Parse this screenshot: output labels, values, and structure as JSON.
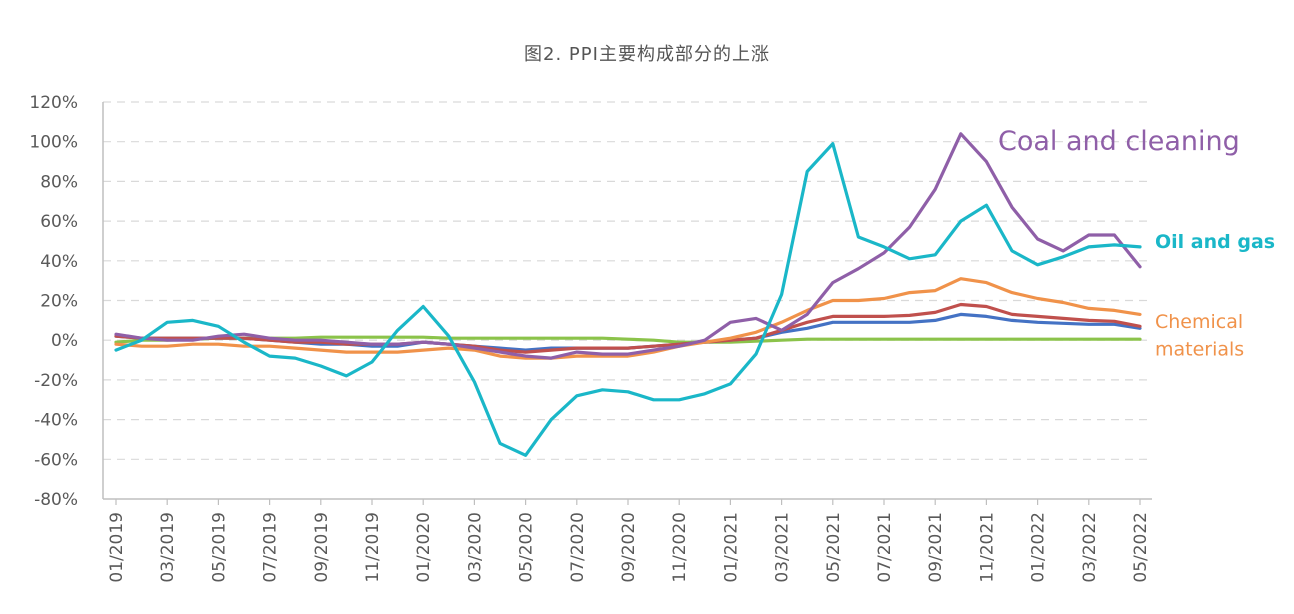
{
  "chart_data": {
    "type": "line",
    "title": "图2. PPI主要构成部分的上涨",
    "ylim": [
      -80,
      120
    ],
    "y_ticks": [
      "120%",
      "100%",
      "80%",
      "60%",
      "40%",
      "20%",
      "0%",
      "-20%",
      "-40%",
      "-60%",
      "-80%"
    ],
    "y_tick_values": [
      120,
      100,
      80,
      60,
      40,
      20,
      0,
      -20,
      -40,
      -60,
      -80
    ],
    "grid": true,
    "x": [
      "01/2019",
      "02/2019",
      "03/2019",
      "04/2019",
      "05/2019",
      "06/2019",
      "07/2019",
      "08/2019",
      "09/2019",
      "10/2019",
      "11/2019",
      "12/2019",
      "01/2020",
      "02/2020",
      "03/2020",
      "04/2020",
      "05/2020",
      "06/2020",
      "07/2020",
      "08/2020",
      "09/2020",
      "10/2020",
      "11/2020",
      "12/2020",
      "01/2021",
      "02/2021",
      "03/2021",
      "04/2021",
      "05/2021",
      "06/2021",
      "07/2021",
      "08/2021",
      "09/2021",
      "10/2021",
      "11/2021",
      "12/2021",
      "01/2022",
      "02/2022",
      "03/2022",
      "04/2022",
      "05/2022"
    ],
    "x_tick_labels": [
      "01/2019",
      "03/2019",
      "05/2019",
      "07/2019",
      "09/2019",
      "11/2019",
      "01/2020",
      "03/2020",
      "05/2020",
      "07/2020",
      "09/2020",
      "11/2020",
      "01/2021",
      "03/2021",
      "05/2021",
      "07/2021",
      "09/2021",
      "11/2021",
      "01/2022",
      "03/2022",
      "05/2022"
    ],
    "series": [
      {
        "name": "",
        "color": "#8bc34a",
        "values": [
          -1,
          0,
          0,
          0.5,
          1,
          1,
          1,
          1,
          1.5,
          1.5,
          1.5,
          1.5,
          1.5,
          1,
          1,
          1,
          1,
          1,
          1,
          1,
          0.5,
          0,
          -1,
          -1,
          -1,
          -0.5,
          0,
          0.5,
          0.5,
          0.5,
          0.5,
          0.5,
          0.5,
          0.5,
          0.5,
          0.5,
          0.5,
          0.5,
          0.5,
          0.5,
          0.5
        ]
      },
      {
        "name": "",
        "color": "#4472c4",
        "values": [
          2,
          1,
          1,
          1,
          1,
          1,
          0,
          -1,
          -2,
          -2,
          -3,
          -3,
          -1,
          -2,
          -3,
          -4,
          -5,
          -4,
          -4,
          -4,
          -4,
          -3,
          -2,
          -1,
          0,
          1,
          4,
          6,
          9,
          9,
          9,
          9,
          10,
          13,
          12,
          10,
          9,
          8.5,
          8,
          8,
          6
        ]
      },
      {
        "name": "",
        "color": "#c0504d",
        "values": [
          2,
          1,
          1,
          1,
          1,
          1,
          0,
          -1,
          -1,
          -2,
          -2,
          -2,
          -1,
          -2,
          -3,
          -5,
          -6,
          -5,
          -4,
          -4,
          -4,
          -3,
          -2,
          -1,
          0,
          1,
          5,
          9,
          12,
          12,
          12,
          12.5,
          14,
          18,
          17,
          13,
          12,
          11,
          10,
          9.5,
          7
        ]
      },
      {
        "name": "Chemical\nmaterials",
        "color": "#f0924a",
        "values": [
          -2,
          -3,
          -3,
          -2,
          -2,
          -3,
          -3,
          -4,
          -5,
          -6,
          -6,
          -6,
          -5,
          -4,
          -5,
          -8,
          -9,
          -9,
          -8,
          -8,
          -8,
          -6,
          -3,
          -1,
          1,
          4,
          9,
          15,
          20,
          20,
          21,
          24,
          25,
          31,
          29,
          24,
          21,
          19,
          16,
          15,
          13
        ]
      },
      {
        "name": "Coal and cleaning",
        "color": "#8f5fa8",
        "values": [
          3,
          1,
          0,
          0,
          2,
          3,
          1,
          0,
          0,
          -1,
          -2,
          -2,
          -1,
          -2,
          -4,
          -6,
          -8,
          -9,
          -6,
          -7,
          -7,
          -5,
          -3,
          0,
          9,
          11,
          5,
          13,
          29,
          36,
          44,
          57,
          76,
          104,
          90,
          67,
          51,
          45,
          53,
          53,
          37
        ]
      },
      {
        "name": "Oil and gas",
        "color": "#1ab7c8",
        "values": [
          -5,
          0,
          9,
          10,
          7,
          -1,
          -8,
          -9,
          -13,
          -18,
          -11,
          5,
          17,
          2,
          -21,
          -52,
          -58,
          -40,
          -28,
          -25,
          -26,
          -30,
          -30,
          -27,
          -22,
          -7,
          23,
          85,
          99,
          52,
          47,
          41,
          43,
          60,
          68,
          45,
          38,
          42,
          47,
          48,
          47
        ]
      }
    ]
  }
}
